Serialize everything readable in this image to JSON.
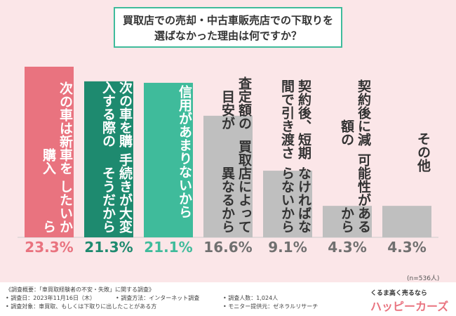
{
  "chart_data": {
    "type": "bar",
    "title": [
      "買取店での売却・中古車販売店での下取りを",
      "選ばなかった理由は何ですか？"
    ],
    "categories": [
      [
        "次の車は新車を購入",
        "したいから"
      ],
      [
        "次の車を購入する際の",
        "手続きが大変そうだから"
      ],
      [
        "信用があまりないから"
      ],
      [
        "査定額の目安が",
        "買取店によって異なるから"
      ],
      [
        "契約後、短期間で引き渡さ",
        "なければならないから"
      ],
      [
        "契約後に減額の",
        "可能性があるから"
      ],
      [
        "その他"
      ]
    ],
    "values": [
      23.3,
      21.3,
      21.1,
      16.6,
      9.1,
      4.3,
      4.3
    ],
    "value_labels": [
      "23.3%",
      "21.3%",
      "21.1%",
      "16.6%",
      "9.1%",
      "4.3%",
      "4.3%"
    ],
    "colors": [
      "#e9737f",
      "#1e8a6f",
      "#3fbb9b",
      "#bfbfbf",
      "#bfbfbf",
      "#bfbfbf",
      "#bfbfbf"
    ],
    "label_colors": [
      "#ffffff",
      "#ffffff",
      "#ffffff",
      "#333333",
      "#333333",
      "#333333",
      "#333333"
    ],
    "value_label_colors": [
      "#e9737f",
      "#1e8a6f",
      "#3fbb9b",
      "#707070",
      "#707070",
      "#707070",
      "#707070"
    ],
    "note": "(n=536人)"
  },
  "footer": {
    "heading": "《調査概要：「車買取経験者の不安・失敗」に関する調査》",
    "items": [
      "• 調査日：2023年11月16日（木）",
      "• 調査方法：インターネット調査",
      "• 調査人数：1,024人",
      "• 調査対象：車買取、もしくは下取りに出したことがある方",
      "• モニター提供元：ゼネラルリサーチ"
    ]
  },
  "logo": {
    "tagline": "くるま高く売るなら",
    "name": "ハッピーカーズ"
  }
}
